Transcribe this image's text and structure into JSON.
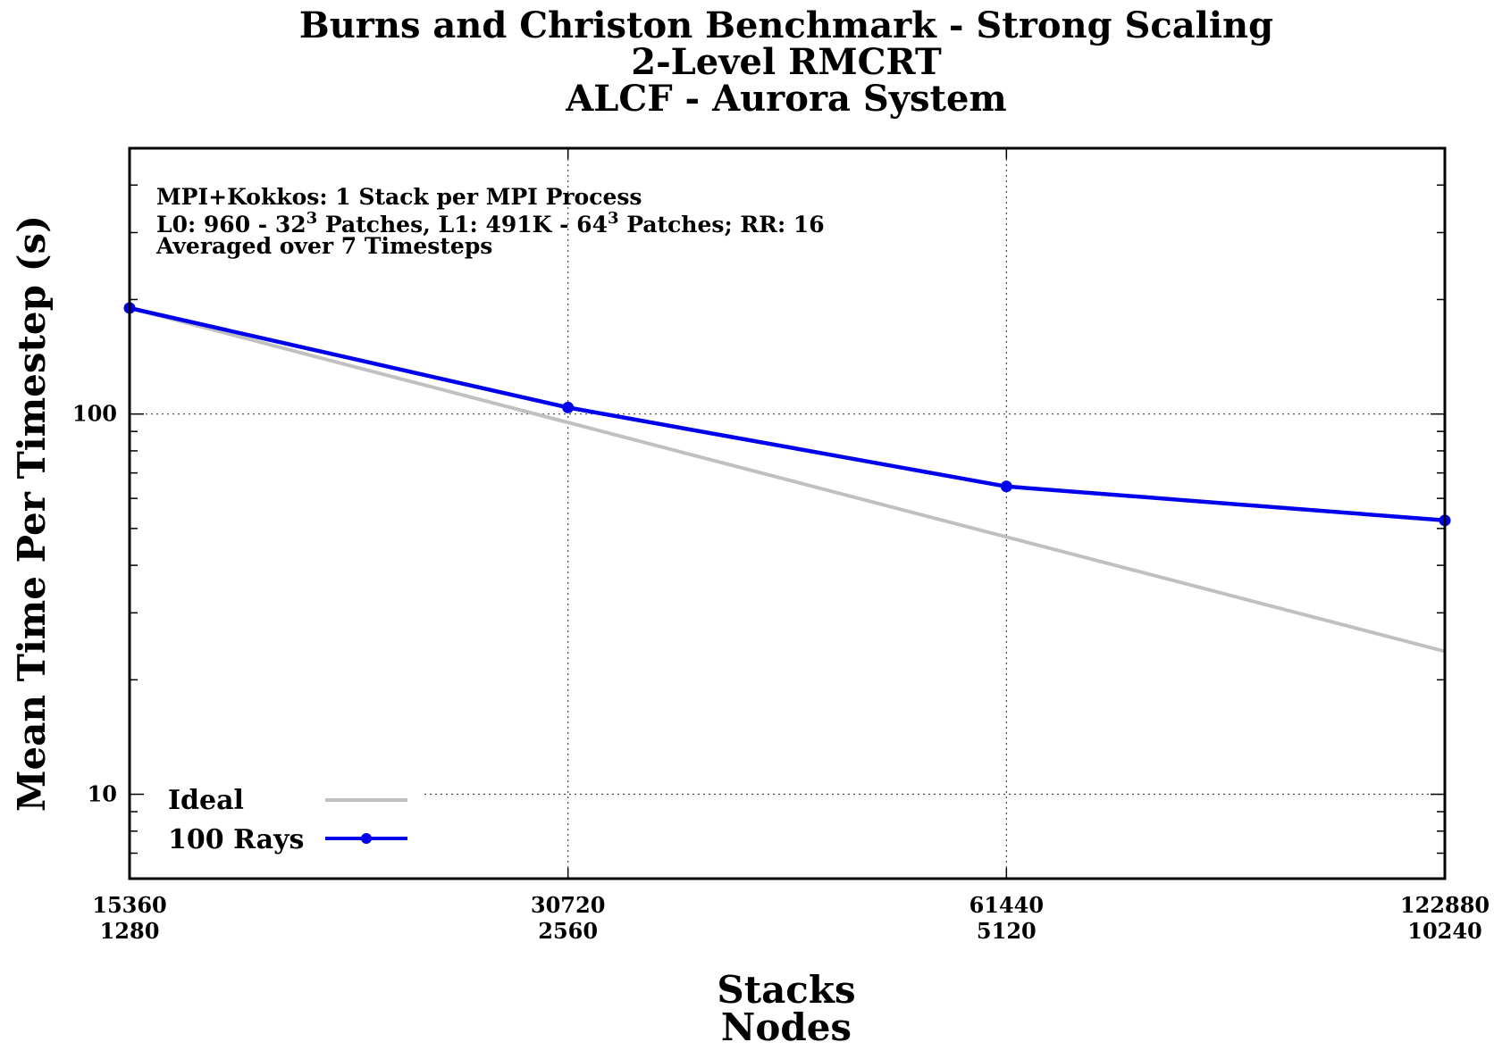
{
  "chart_data": {
    "type": "line",
    "title": "Burns and Christon Benchmark - Strong Scaling",
    "subtitle_lines": [
      "2-Level RMCRT",
      "ALCF - Aurora System"
    ],
    "xlabel_lines": [
      "Stacks",
      "Nodes"
    ],
    "ylabel": "Mean Time Per Timestep (s)",
    "x_scale": "log2",
    "y_scale": "log10",
    "xlim": [
      15360,
      122880
    ],
    "ylim": [
      6,
      500
    ],
    "x_ticks": [
      {
        "stacks": "15360",
        "nodes": "1280",
        "value": 15360
      },
      {
        "stacks": "30720",
        "nodes": "2560",
        "value": 30720
      },
      {
        "stacks": "61440",
        "nodes": "5120",
        "value": 61440
      },
      {
        "stacks": "122880",
        "nodes": "10240",
        "value": 122880
      }
    ],
    "y_ticks": [
      {
        "label": "100",
        "value": 100
      },
      {
        "label": "10",
        "value": 10
      }
    ],
    "grid": true,
    "annotations": {
      "line1": "MPI+Kokkos: 1 Stack per MPI Process",
      "line2_a": "L0: 960 - 32",
      "line2_sup1": "3",
      "line2_b": " Patches, L1: 491K - 64",
      "line2_sup2": "3",
      "line2_c": " Patches; RR: 16",
      "line3": "Averaged over 7 Timesteps"
    },
    "legend_position": "bottom-left",
    "series": [
      {
        "name": "Ideal",
        "color": "#c0c0c0",
        "markers": false,
        "x": [
          15360,
          122880
        ],
        "y": [
          190,
          23.75
        ]
      },
      {
        "name": "100 Rays",
        "color": "#0000ee",
        "markers": true,
        "x": [
          15360,
          30720,
          61440,
          122880
        ],
        "y": [
          190,
          104,
          64.5,
          52.5
        ]
      }
    ]
  }
}
